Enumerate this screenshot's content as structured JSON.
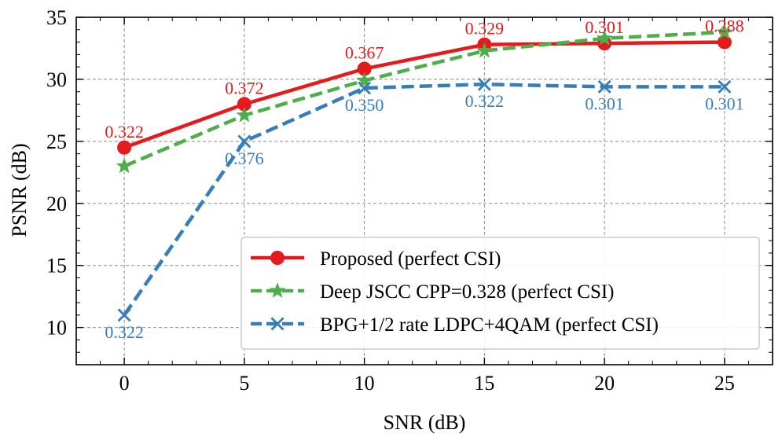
{
  "chart_data": {
    "type": "line",
    "xlabel": "SNR (dB)",
    "ylabel": "PSNR (dB)",
    "xlim": [
      -2,
      27
    ],
    "ylim": [
      7,
      35
    ],
    "xticks": [
      0,
      5,
      10,
      15,
      20,
      25
    ],
    "yticks": [
      10,
      15,
      20,
      25,
      30,
      35
    ],
    "grid": true,
    "legend_position": "bottom-right",
    "x": [
      0,
      5,
      10,
      15,
      20,
      25
    ],
    "series": [
      {
        "name": "Proposed (perfect CSI)",
        "color": "#e41a1c",
        "marker": "circle",
        "linestyle": "solid",
        "values": [
          24.5,
          28.0,
          30.85,
          32.8,
          32.9,
          33.0
        ],
        "labels": [
          "0.322",
          "0.372",
          "0.367",
          "0.329",
          "0.301",
          "0.288"
        ],
        "label_position": "above"
      },
      {
        "name": "Deep JSCC CPP=0.328 (perfect CSI)",
        "color": "#4daf4a",
        "marker": "star",
        "linestyle": "dashed",
        "values": [
          23.0,
          27.1,
          29.9,
          32.3,
          33.3,
          33.8
        ],
        "labels": [],
        "label_position": "above"
      },
      {
        "name": "BPG+1/2 rate LDPC+4QAM (perfect CSI)",
        "color": "#377eb8",
        "marker": "x",
        "linestyle": "dashed",
        "values": [
          11.0,
          25.0,
          29.3,
          29.6,
          29.4,
          29.4
        ],
        "labels": [
          "0.322",
          "0.376",
          "0.350",
          "0.322",
          "0.301",
          "0.301"
        ],
        "label_position": "below"
      }
    ]
  }
}
